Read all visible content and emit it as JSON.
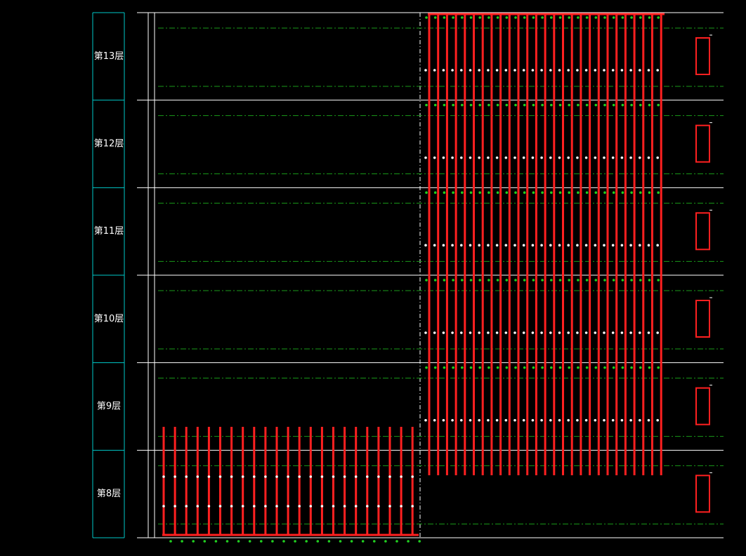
{
  "floors": [
    "第13层",
    "第12层",
    "第11层",
    "第10层",
    "第9层",
    "第8层"
  ]
}
